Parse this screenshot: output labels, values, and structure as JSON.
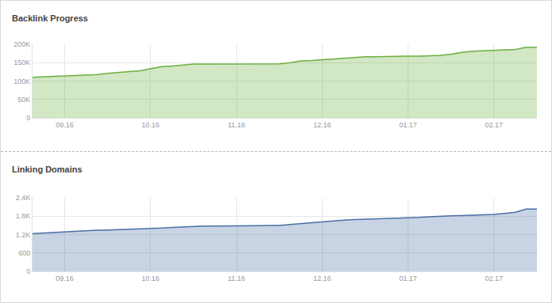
{
  "chart_data": [
    {
      "type": "area",
      "title": "Backlink Progress",
      "categories": [
        null,
        null,
        null,
        "09.16",
        null,
        null,
        null,
        null,
        null,
        null,
        null,
        "10.16",
        null,
        null,
        null,
        null,
        null,
        null,
        null,
        "11.16",
        null,
        null,
        null,
        null,
        null,
        null,
        null,
        "12.16",
        null,
        null,
        null,
        null,
        null,
        null,
        null,
        "01.17",
        null,
        null,
        null,
        null,
        null,
        null,
        null,
        "02.17",
        null,
        null,
        null,
        null
      ],
      "values": [
        110000,
        112000,
        113000,
        114000,
        115000,
        116000,
        118000,
        121000,
        124000,
        126000,
        128000,
        134000,
        139000,
        141000,
        143000,
        146000,
        146000,
        146000,
        146000,
        146000,
        146000,
        146000,
        147000,
        147000,
        150000,
        155000,
        156000,
        158000,
        161000,
        163000,
        164000,
        166000,
        166000,
        167000,
        167000,
        168000,
        168000,
        169000,
        170000,
        173000,
        178000,
        181000,
        182000,
        183000,
        184000,
        186000,
        192000,
        192000
      ],
      "color": "#6aaf3d",
      "ylim": [
        0,
        200000
      ],
      "yticks": [
        0,
        {
          "value": 50000,
          "label": "50K"
        },
        {
          "value": 100000,
          "label": "100K"
        },
        {
          "value": 150000,
          "label": "150K"
        },
        {
          "value": 200000,
          "label": "200K"
        }
      ],
      "grid": true
    },
    {
      "type": "area",
      "title": "Linking Domains",
      "categories": [
        null,
        null,
        null,
        "09.16",
        null,
        null,
        null,
        null,
        null,
        null,
        null,
        "10.16",
        null,
        null,
        null,
        null,
        null,
        null,
        null,
        "11.16",
        null,
        null,
        null,
        null,
        null,
        null,
        null,
        "12.16",
        null,
        null,
        null,
        null,
        null,
        null,
        null,
        "01.17",
        null,
        null,
        null,
        null,
        null,
        null,
        null,
        "02.17",
        null,
        null,
        null,
        null
      ],
      "values": [
        1230,
        1250,
        1270,
        1290,
        1300,
        1320,
        1340,
        1350,
        1360,
        1370,
        1380,
        1390,
        1410,
        1430,
        1450,
        1470,
        1480,
        1480,
        1480,
        1490,
        1490,
        1490,
        1500,
        1500,
        1530,
        1560,
        1590,
        1620,
        1650,
        1670,
        1690,
        1700,
        1710,
        1720,
        1730,
        1740,
        1760,
        1780,
        1800,
        1810,
        1820,
        1830,
        1850,
        1860,
        1890,
        1930,
        2030,
        2030
      ],
      "color": "#4a6fa5",
      "ylim": [
        0,
        2400
      ],
      "yticks": [
        0,
        600,
        {
          "value": 1200,
          "label": "1.2K"
        },
        {
          "value": 1800,
          "label": "1.8K"
        },
        {
          "value": 2400,
          "label": "2.4K"
        }
      ],
      "grid": true
    }
  ]
}
